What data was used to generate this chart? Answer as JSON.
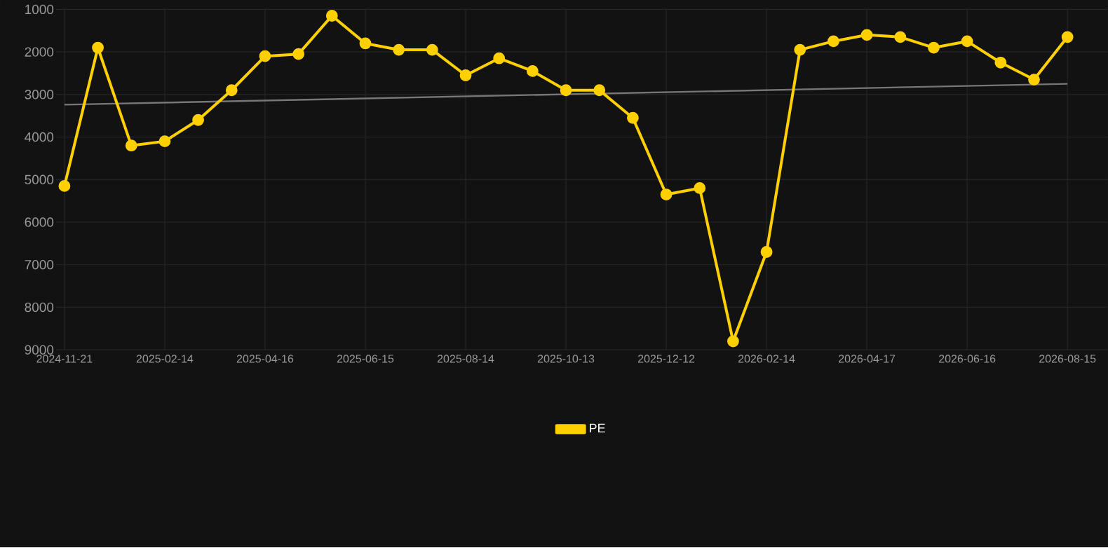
{
  "chart_data": {
    "type": "line",
    "categories": [
      "2024-11-21",
      null,
      null,
      "2025-02-14",
      null,
      null,
      "2025-04-16",
      null,
      null,
      "2025-06-15",
      null,
      null,
      "2025-08-14",
      null,
      null,
      "2025-10-13",
      null,
      null,
      "2025-12-12",
      null,
      null,
      "2026-02-14",
      null,
      null,
      "2026-04-17",
      null,
      null,
      "2026-06-16",
      null,
      null,
      "2026-08-15"
    ],
    "series": [
      {
        "name": "PE",
        "color": "#ffd000",
        "marker": "circle",
        "values": [
          5150,
          1900,
          4200,
          4100,
          3600,
          2900,
          2100,
          2050,
          1150,
          1800,
          1950,
          1950,
          2550,
          2150,
          2450,
          2900,
          2900,
          3550,
          5350,
          5200,
          8800,
          6700,
          1950,
          1750,
          1600,
          1650,
          1900,
          1750,
          2250,
          2650,
          1650
        ]
      },
      {
        "type": "line",
        "color": "#777777",
        "marker": "none",
        "values": [
          3240,
          null,
          null,
          null,
          null,
          null,
          null,
          null,
          null,
          null,
          null,
          null,
          null,
          null,
          null,
          null,
          null,
          null,
          null,
          null,
          null,
          null,
          null,
          null,
          null,
          null,
          null,
          null,
          null,
          null,
          2750
        ]
      }
    ],
    "ylim": [
      9000,
      1000
    ],
    "yticks": [
      1000,
      2000,
      3000,
      4000,
      5000,
      6000,
      7000,
      8000,
      9000
    ],
    "grid": true,
    "legend": "bottom"
  }
}
